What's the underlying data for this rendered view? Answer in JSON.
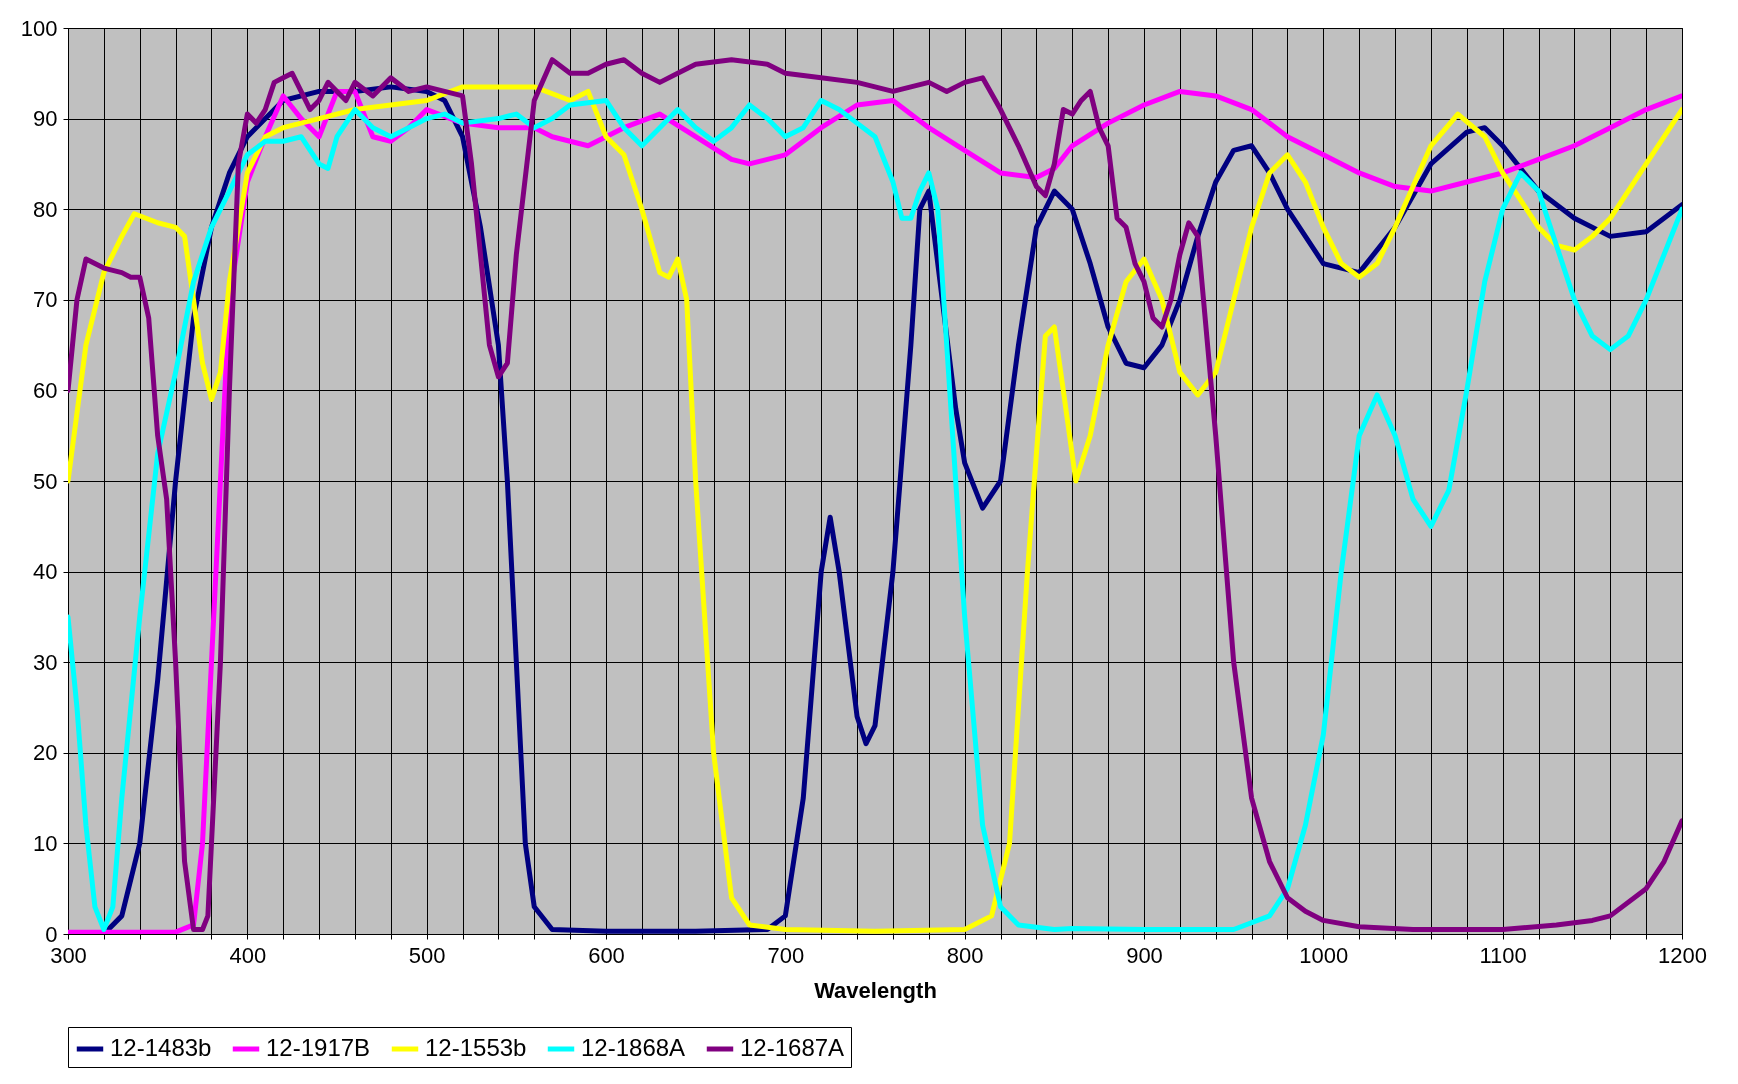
{
  "chart_data": {
    "type": "line",
    "xlabel": "Wavelength",
    "xlim": [
      300,
      1200
    ],
    "ylim": [
      0,
      100
    ],
    "xticks": [
      300,
      {
        "value": 320,
        "label": null
      },
      {
        "value": 340,
        "label": null
      },
      {
        "value": 360,
        "label": null
      },
      {
        "value": 380,
        "label": null
      },
      400,
      {
        "value": 420,
        "label": null
      },
      {
        "value": 440,
        "label": null
      },
      {
        "value": 460,
        "label": null
      },
      {
        "value": 480,
        "label": null
      },
      500,
      {
        "value": 520,
        "label": null
      },
      {
        "value": 540,
        "label": null
      },
      {
        "value": 560,
        "label": null
      },
      {
        "value": 580,
        "label": null
      },
      600,
      {
        "value": 620,
        "label": null
      },
      {
        "value": 640,
        "label": null
      },
      {
        "value": 660,
        "label": null
      },
      {
        "value": 680,
        "label": null
      },
      700,
      {
        "value": 720,
        "label": null
      },
      {
        "value": 740,
        "label": null
      },
      {
        "value": 760,
        "label": null
      },
      {
        "value": 780,
        "label": null
      },
      800,
      {
        "value": 820,
        "label": null
      },
      {
        "value": 840,
        "label": null
      },
      {
        "value": 860,
        "label": null
      },
      {
        "value": 880,
        "label": null
      },
      900,
      {
        "value": 920,
        "label": null
      },
      {
        "value": 940,
        "label": null
      },
      {
        "value": 960,
        "label": null
      },
      {
        "value": 980,
        "label": null
      },
      1000,
      {
        "value": 1020,
        "label": null
      },
      {
        "value": 1040,
        "label": null
      },
      {
        "value": 1060,
        "label": null
      },
      {
        "value": 1080,
        "label": null
      },
      1100,
      {
        "value": 1120,
        "label": null
      },
      {
        "value": 1140,
        "label": null
      },
      {
        "value": 1160,
        "label": null
      },
      {
        "value": 1180,
        "label": null
      },
      1200
    ],
    "yticks": [
      0,
      10,
      20,
      30,
      40,
      50,
      60,
      70,
      80,
      90,
      100
    ],
    "grid": true,
    "legend": "bottom",
    "marker": "none",
    "line_style": "solid",
    "series": [
      {
        "name": "12-1483b",
        "color": "#000080",
        "x": [
          300,
          320,
          330,
          340,
          350,
          360,
          370,
          380,
          390,
          400,
          420,
          440,
          460,
          480,
          500,
          510,
          520,
          530,
          540,
          545,
          550,
          555,
          560,
          570,
          600,
          650,
          690,
          700,
          710,
          720,
          725,
          730,
          740,
          745,
          750,
          760,
          770,
          775,
          780,
          795,
          800,
          810,
          820,
          830,
          840,
          850,
          860,
          870,
          880,
          890,
          900,
          910,
          920,
          930,
          940,
          950,
          960,
          970,
          980,
          1000,
          1020,
          1040,
          1060,
          1080,
          1090,
          1100,
          1120,
          1140,
          1160,
          1180,
          1200
        ],
        "values": [
          0,
          0,
          2,
          10,
          28,
          50,
          68,
          78,
          84,
          88,
          92,
          93,
          93,
          93.5,
          93,
          92,
          88,
          78,
          65,
          50,
          30,
          10,
          3,
          0.5,
          0.3,
          0.3,
          0.5,
          2,
          15,
          40,
          46,
          40,
          24,
          21,
          23,
          40,
          65,
          80,
          82,
          58,
          52,
          47,
          50,
          65,
          78,
          82,
          80,
          74,
          67,
          63,
          62.5,
          65,
          70,
          77,
          83,
          86.5,
          87,
          84,
          80,
          74,
          73,
          78,
          85,
          88.5,
          89,
          87,
          82,
          79,
          77,
          77.5,
          80.5
        ]
      },
      {
        "name": "12-1917B",
        "color": "#ff00ff",
        "x": [
          300,
          360,
          370,
          375,
          380,
          390,
          400,
          410,
          420,
          430,
          440,
          450,
          460,
          470,
          480,
          490,
          500,
          520,
          540,
          560,
          570,
          590,
          610,
          630,
          650,
          670,
          680,
          700,
          720,
          740,
          760,
          780,
          800,
          820,
          840,
          850,
          860,
          880,
          900,
          920,
          940,
          960,
          980,
          1000,
          1020,
          1040,
          1060,
          1080,
          1100,
          1120,
          1140,
          1160,
          1180,
          1200
        ],
        "values": [
          0.2,
          0.2,
          1,
          10,
          30,
          70,
          83,
          88,
          92.5,
          90,
          88,
          93,
          93,
          88,
          87.5,
          89,
          91,
          89.5,
          89,
          89,
          88,
          87,
          89,
          90.5,
          88,
          85.5,
          85,
          86,
          89,
          91.5,
          92,
          89,
          86.5,
          84,
          83.5,
          84.5,
          87,
          89.5,
          91.5,
          93,
          92.5,
          91,
          88,
          86,
          84,
          82.5,
          82,
          83,
          84,
          85.5,
          87,
          89,
          91,
          92.5
        ]
      },
      {
        "name": "12-1553b",
        "color": "#ffff00",
        "x": [
          300,
          310,
          320,
          330,
          337,
          350,
          360,
          365,
          370,
          375,
          380,
          385,
          390,
          400,
          410,
          420,
          440,
          460,
          480,
          500,
          520,
          540,
          560,
          580,
          590,
          600,
          610,
          620,
          630,
          635,
          640,
          645,
          650,
          660,
          670,
          680,
          700,
          750,
          800,
          815,
          825,
          835,
          845,
          850,
          855,
          862,
          870,
          880,
          890,
          900,
          910,
          920,
          930,
          940,
          950,
          960,
          970,
          980,
          990,
          1000,
          1010,
          1020,
          1030,
          1040,
          1060,
          1075,
          1090,
          1100,
          1120,
          1130,
          1140,
          1150,
          1160,
          1180,
          1200
        ],
        "values": [
          50,
          65,
          73,
          77,
          79.5,
          78.5,
          78,
          77,
          70,
          63,
          59,
          62,
          72,
          84,
          88,
          89,
          90,
          91,
          91.5,
          92,
          93.5,
          93.5,
          93.5,
          92,
          93,
          88,
          86,
          80,
          73,
          72.5,
          74.5,
          70,
          50,
          20,
          4,
          1,
          0.5,
          0.3,
          0.5,
          2,
          10,
          40,
          66,
          67,
          60,
          50,
          55,
          65,
          72,
          74.5,
          70,
          62,
          59.5,
          62,
          70,
          78,
          84,
          86,
          83,
          78,
          74,
          72.5,
          74,
          78,
          87,
          90.5,
          88,
          84,
          78,
          76,
          75.5,
          77,
          79,
          85,
          91
        ]
      },
      {
        "name": "12-1868A",
        "color": "#00ffff",
        "x": [
          300,
          305,
          310,
          315,
          320,
          325,
          330,
          340,
          350,
          360,
          370,
          380,
          390,
          400,
          410,
          420,
          430,
          440,
          445,
          450,
          460,
          470,
          480,
          490,
          500,
          510,
          520,
          540,
          550,
          560,
          570,
          580,
          600,
          610,
          620,
          630,
          640,
          650,
          660,
          670,
          680,
          690,
          700,
          710,
          720,
          730,
          740,
          750,
          760,
          765,
          770,
          775,
          780,
          785,
          790,
          800,
          810,
          820,
          830,
          850,
          860,
          900,
          950,
          970,
          980,
          990,
          1000,
          1010,
          1020,
          1030,
          1040,
          1050,
          1060,
          1070,
          1080,
          1090,
          1100,
          1110,
          1120,
          1130,
          1140,
          1150,
          1160,
          1170,
          1180,
          1200
        ],
        "values": [
          35,
          25,
          12,
          3,
          0.5,
          3,
          15,
          35,
          53,
          62,
          72,
          78,
          82,
          86,
          87.5,
          87.5,
          88,
          85,
          84.5,
          88,
          91,
          89,
          88,
          89,
          90,
          90.5,
          89.5,
          90,
          90.5,
          89,
          90,
          91.5,
          92,
          89,
          87,
          89,
          91,
          89,
          87.5,
          89,
          91.5,
          90,
          88,
          89,
          92,
          91,
          89.5,
          88,
          83,
          79,
          79,
          82,
          84,
          80,
          65,
          35,
          12,
          3,
          1,
          0.5,
          0.6,
          0.5,
          0.5,
          2,
          5,
          12,
          22,
          40,
          55,
          59.5,
          55,
          48,
          45,
          49,
          60,
          72,
          80,
          84,
          82,
          76,
          70,
          66,
          64.5,
          66,
          70,
          80
        ]
      },
      {
        "name": "12-1687A",
        "color": "#800080",
        "x": [
          300,
          305,
          310,
          320,
          330,
          335,
          340,
          345,
          350,
          355,
          360,
          365,
          370,
          375,
          378,
          385,
          390,
          395,
          400,
          405,
          410,
          415,
          420,
          425,
          430,
          435,
          440,
          445,
          450,
          455,
          460,
          470,
          480,
          490,
          500,
          510,
          520,
          525,
          530,
          535,
          540,
          545,
          550,
          560,
          570,
          580,
          590,
          600,
          610,
          620,
          630,
          640,
          650,
          670,
          690,
          700,
          720,
          740,
          760,
          780,
          790,
          800,
          810,
          820,
          830,
          840,
          845,
          850,
          855,
          860,
          865,
          870,
          875,
          880,
          885,
          890,
          895,
          900,
          905,
          910,
          915,
          920,
          925,
          930,
          940,
          950,
          960,
          970,
          980,
          990,
          1000,
          1020,
          1050,
          1100,
          1130,
          1150,
          1160,
          1180,
          1190,
          1200
        ],
        "values": [
          60,
          70,
          74.5,
          73.5,
          73,
          72.5,
          72.5,
          68,
          55,
          48,
          30,
          8,
          0.5,
          0.5,
          2,
          30,
          60,
          85,
          90.5,
          89.5,
          91,
          94,
          94.5,
          95,
          93,
          91,
          92,
          94,
          93,
          92,
          94,
          92.5,
          94.5,
          93,
          93.5,
          93,
          92.5,
          85,
          75,
          65,
          61.5,
          63,
          75,
          92,
          96.5,
          95,
          95,
          96,
          96.5,
          95,
          94,
          95,
          96,
          96.5,
          96,
          95,
          94.5,
          94,
          93,
          94,
          93,
          94,
          94.5,
          91,
          87,
          82.5,
          81.5,
          85,
          91,
          90.5,
          92,
          93,
          89,
          87,
          79,
          78,
          74,
          72,
          68,
          67,
          70,
          75,
          78.5,
          77,
          55,
          30,
          15,
          8,
          4,
          2.5,
          1.5,
          0.8,
          0.5,
          0.5,
          1,
          1.5,
          2,
          5,
          8,
          12.5
        ]
      }
    ]
  }
}
